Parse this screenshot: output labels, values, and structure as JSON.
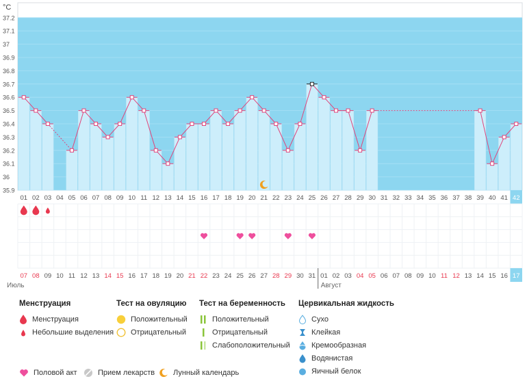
{
  "chart_data": {
    "type": "bar",
    "unit": "°C",
    "ylim": [
      35.9,
      37.3
    ],
    "yticks": [
      "35.9",
      "36",
      "36.1",
      "36.2",
      "36.3",
      "36.4",
      "36.5",
      "36.6",
      "36.7",
      "36.8",
      "36.9",
      "37",
      "37.1",
      "37.2"
    ],
    "cycle_days": [
      "01",
      "02",
      "03",
      "04",
      "05",
      "06",
      "07",
      "08",
      "09",
      "10",
      "11",
      "12",
      "13",
      "14",
      "15",
      "16",
      "17",
      "18",
      "19",
      "20",
      "21",
      "22",
      "23",
      "24",
      "25",
      "26",
      "27",
      "28",
      "29",
      "30",
      "31",
      "32",
      "33",
      "34",
      "35",
      "36",
      "37",
      "38",
      "39",
      "40",
      "41",
      "42"
    ],
    "temperatures": [
      36.6,
      36.5,
      36.4,
      null,
      36.2,
      36.5,
      36.4,
      36.3,
      36.4,
      36.6,
      36.5,
      36.2,
      36.1,
      36.3,
      36.4,
      36.4,
      36.5,
      36.4,
      36.5,
      36.6,
      36.5,
      36.4,
      36.2,
      36.4,
      36.7,
      36.6,
      36.5,
      36.5,
      36.2,
      36.5,
      null,
      null,
      null,
      null,
      null,
      null,
      null,
      null,
      36.5,
      36.1,
      36.3,
      36.4
    ],
    "dates": [
      "07",
      "08",
      "09",
      "10",
      "11",
      "12",
      "13",
      "14",
      "15",
      "16",
      "17",
      "18",
      "19",
      "20",
      "21",
      "22",
      "23",
      "24",
      "25",
      "26",
      "27",
      "28",
      "29",
      "30",
      "31",
      "01",
      "02",
      "03",
      "04",
      "05",
      "06",
      "07",
      "08",
      "09",
      "10",
      "11",
      "12",
      "13",
      "14",
      "15",
      "16",
      "17"
    ],
    "weekend_dates": [
      0,
      1,
      7,
      8,
      14,
      15,
      21,
      22,
      28,
      29,
      35,
      36
    ],
    "months": [
      {
        "name": "Июль",
        "day_index": 0
      },
      {
        "name": "Август",
        "day_index": 25
      }
    ],
    "menstruation_days": [
      0,
      1
    ],
    "light_spotting_days": [
      2
    ],
    "intercourse_days": [
      15,
      18,
      19,
      22,
      24
    ],
    "moon_days": [
      20
    ],
    "highlighted_day": 41
  },
  "colors": {
    "band": "#8dd6f0",
    "bar": "#cdeefb",
    "line": "#e0457b",
    "drop": "#e8384f",
    "heart": "#ee4f9d",
    "moon": "#f0a020",
    "highlight": "#8dd6f0",
    "weekend": "#e8384f"
  },
  "legend": {
    "menstruation": {
      "title": "Менструация",
      "items": [
        {
          "label": "Менструация",
          "icon": "blood-drop-icon"
        },
        {
          "label": "Небольшие выделения",
          "icon": "small-drop-icon"
        }
      ]
    },
    "ovulation": {
      "title": "Тест на овуляцию",
      "items": [
        {
          "label": "Положительный",
          "icon": "filled-circle-icon"
        },
        {
          "label": "Отрицательный",
          "icon": "empty-circle-icon"
        }
      ]
    },
    "pregnancy": {
      "title": "Тест на беременность",
      "items": [
        {
          "label": "Положительный",
          "icon": "double-bar-icon"
        },
        {
          "label": "Отрицательный",
          "icon": "single-bar-icon"
        },
        {
          "label": "Слабоположительный",
          "icon": "faint-bar-icon"
        }
      ]
    },
    "cervical": {
      "title": "Цервикальная жидкость",
      "items": [
        {
          "label": "Сухо",
          "icon": "dry-drop-icon"
        },
        {
          "label": "Клейкая",
          "icon": "sticky-icon"
        },
        {
          "label": "Кремообразная",
          "icon": "creamy-drop-icon"
        },
        {
          "label": "Водянистая",
          "icon": "watery-drop-icon"
        },
        {
          "label": "Яичный белок",
          "icon": "egg-white-icon"
        }
      ]
    },
    "bottom": [
      {
        "label": "Половой акт",
        "icon": "heart-icon"
      },
      {
        "label": "Прием лекарств",
        "icon": "pill-icon"
      },
      {
        "label": "Лунный календарь",
        "icon": "moon-icon"
      }
    ]
  }
}
